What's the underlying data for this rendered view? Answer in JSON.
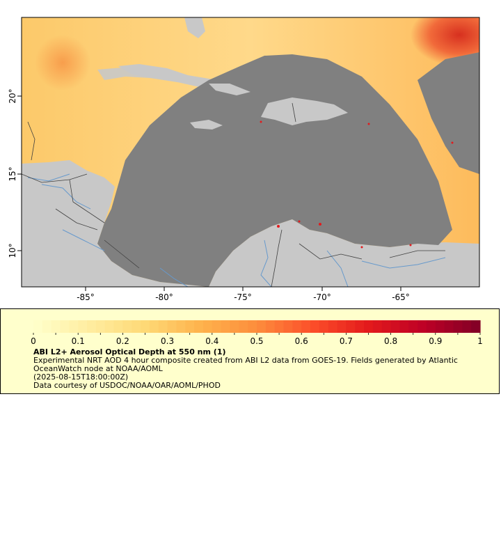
{
  "map": {
    "x_ticks": [
      "-85°",
      "-80°",
      "-75°",
      "-70°",
      "-65°"
    ],
    "y_ticks": [
      "20°",
      "15°",
      "10°"
    ],
    "lon_range": [
      -89,
      -60
    ],
    "lat_range": [
      8,
      25
    ],
    "colors": {
      "ocean": "#808080",
      "land": "#c8c8c8",
      "rivers": "#6699cc",
      "borders": "#404040"
    }
  },
  "legend": {
    "colorbar_ticks": [
      "0",
      "0.1",
      "0.2",
      "0.3",
      "0.4",
      "0.5",
      "0.6",
      "0.7",
      "0.8",
      "0.9",
      "1"
    ],
    "range": [
      0,
      1
    ],
    "title": "ABI L2+ Aerosol Optical Depth at 550 nm (1)",
    "description": "Experimental NRT AOD 4 hour composite created from ABI L2 data from GOES-19. Fields generated by Atlantic OceanWatch node at NOAA/AOML",
    "time": "(2025-08-15T18:00:00Z)",
    "credit": "Data courtesy of USDOC/NOAA/OAR/AOML/PHOD",
    "background": "#ffffcc",
    "colorbar_colors": [
      "#ffffcc",
      "#ffeda0",
      "#fed976",
      "#feb24c",
      "#fd8d3c",
      "#fc4e2a",
      "#e31a1c",
      "#bd0026",
      "#800026"
    ]
  }
}
